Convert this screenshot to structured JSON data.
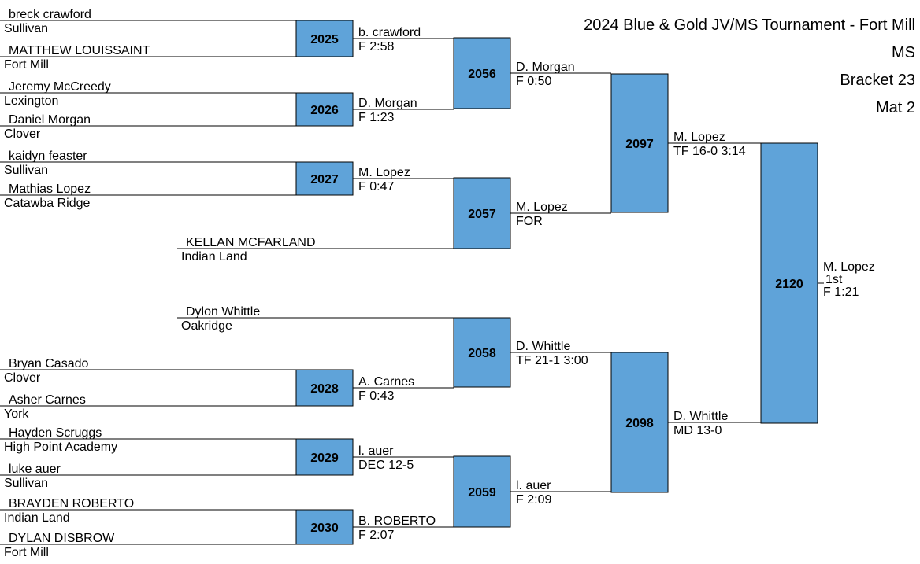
{
  "header": {
    "title": "2024 Blue & Gold JV/MS Tournament - Fort Mill",
    "division": "MS",
    "bracket": "Bracket 23",
    "mat": "Mat 2"
  },
  "colors": {
    "box_fill": "#5fa3d9",
    "line": "#000000",
    "text": "#000000"
  },
  "entrants": [
    {
      "name": "breck crawford",
      "team": "Sullivan"
    },
    {
      "name": "MATTHEW LOUISSAINT",
      "team": "Fort Mill"
    },
    {
      "name": "Jeremy McCreedy",
      "team": "Lexington"
    },
    {
      "name": "Daniel Morgan",
      "team": "Clover"
    },
    {
      "name": "kaidyn feaster",
      "team": "Sullivan"
    },
    {
      "name": "Mathias Lopez",
      "team": "Catawba Ridge"
    },
    {
      "name": "KELLAN MCFARLAND",
      "team": "Indian Land"
    },
    {
      "name": "Dylon Whittle",
      "team": "Oakridge"
    },
    {
      "name": "Bryan Casado",
      "team": "Clover"
    },
    {
      "name": "Asher Carnes",
      "team": "York"
    },
    {
      "name": "Hayden Scruggs",
      "team": "High Point Academy"
    },
    {
      "name": "luke auer",
      "team": "Sullivan"
    },
    {
      "name": "BRAYDEN ROBERTO",
      "team": "Indian Land"
    },
    {
      "name": "DYLAN DISBROW",
      "team": "Fort Mill"
    }
  ],
  "bouts": [
    {
      "number": "2025",
      "winner": "b. crawford",
      "result": "F 2:58"
    },
    {
      "number": "2026",
      "winner": "D. Morgan",
      "result": "F 1:23"
    },
    {
      "number": "2027",
      "winner": "M. Lopez",
      "result": "F 0:47"
    },
    {
      "number": "2028",
      "winner": "A. Carnes",
      "result": "F 0:43"
    },
    {
      "number": "2029",
      "winner": "l. auer",
      "result": "DEC 12-5"
    },
    {
      "number": "2030",
      "winner": "B. ROBERTO",
      "result": "F 2:07"
    },
    {
      "number": "2056",
      "winner": "D. Morgan",
      "result": "F 0:50"
    },
    {
      "number": "2057",
      "winner": "M. Lopez",
      "result": "FOR"
    },
    {
      "number": "2058",
      "winner": "D. Whittle",
      "result": "TF 21-1 3:00"
    },
    {
      "number": "2059",
      "winner": "l. auer",
      "result": "F 2:09"
    },
    {
      "number": "2097",
      "winner": "M. Lopez",
      "result": "TF 16-0 3:14"
    },
    {
      "number": "2098",
      "winner": "D. Whittle",
      "result": "MD 13-0"
    },
    {
      "number": "2120",
      "winner": "M. Lopez",
      "result": "F 1:21",
      "place": "1st"
    }
  ]
}
